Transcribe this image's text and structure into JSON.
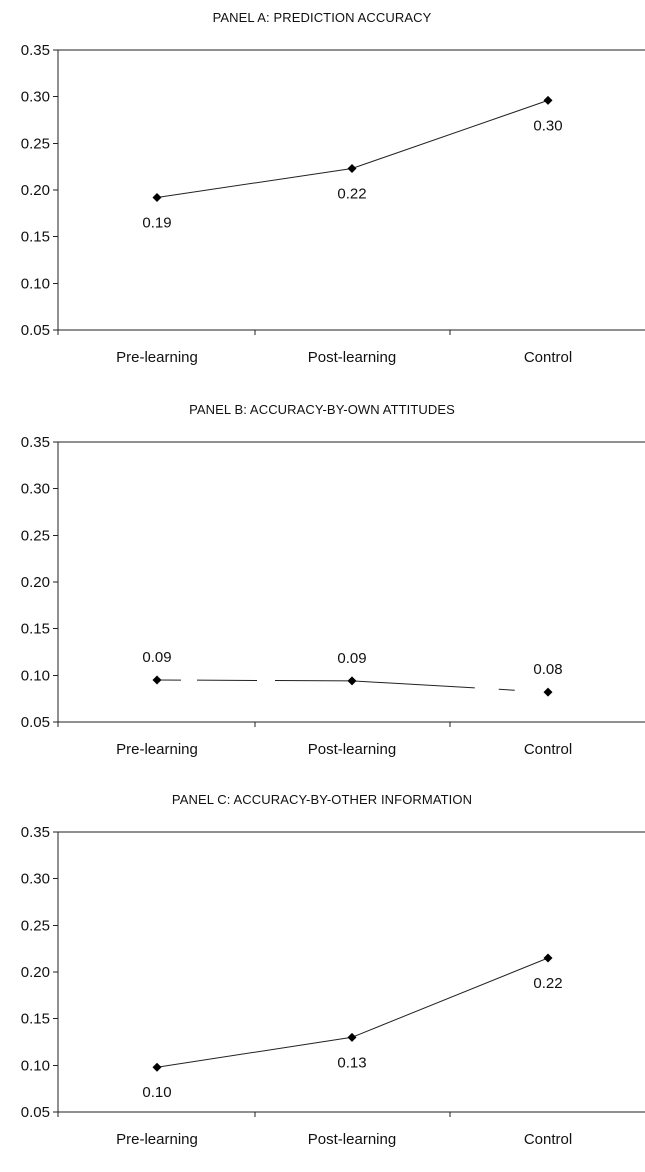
{
  "chart_data": [
    {
      "type": "line",
      "title": "PANEL A: PREDICTION ACCURACY",
      "xlabel": "",
      "ylabel": "",
      "categories": [
        "Pre-learning",
        "Post-learning",
        "Control"
      ],
      "values": [
        0.192,
        0.223,
        0.296
      ],
      "data_labels": [
        "0.19",
        "0.22",
        "0.30"
      ],
      "label_position": [
        "below",
        "below",
        "below"
      ],
      "ylim": [
        0.05,
        0.35
      ],
      "yticks": [
        "0.05",
        "0.10",
        "0.15",
        "0.20",
        "0.25",
        "0.30",
        "0.35"
      ],
      "grid": false
    },
    {
      "type": "line",
      "title": "PANEL B: ACCURACY-BY-OWN ATTITUDES",
      "xlabel": "",
      "ylabel": "",
      "categories": [
        "Pre-learning",
        "Post-learning",
        "Control"
      ],
      "values": [
        0.095,
        0.094,
        0.082
      ],
      "data_labels": [
        "0.09",
        "0.09",
        "0.08"
      ],
      "label_position": [
        "above",
        "above",
        "above"
      ],
      "ylim": [
        0.05,
        0.35
      ],
      "yticks": [
        "0.05",
        "0.10",
        "0.15",
        "0.20",
        "0.25",
        "0.30",
        "0.35"
      ],
      "grid": false
    },
    {
      "type": "line",
      "title": "PANEL C: ACCURACY-BY-OTHER INFORMATION",
      "xlabel": "",
      "ylabel": "",
      "categories": [
        "Pre-learning",
        "Post-learning",
        "Control"
      ],
      "values": [
        0.098,
        0.13,
        0.215
      ],
      "data_labels": [
        "0.10",
        "0.13",
        "0.22"
      ],
      "label_position": [
        "below",
        "below",
        "below"
      ],
      "ylim": [
        0.05,
        0.35
      ],
      "yticks": [
        "0.05",
        "0.10",
        "0.15",
        "0.20",
        "0.25",
        "0.30",
        "0.35"
      ],
      "grid": false
    }
  ]
}
